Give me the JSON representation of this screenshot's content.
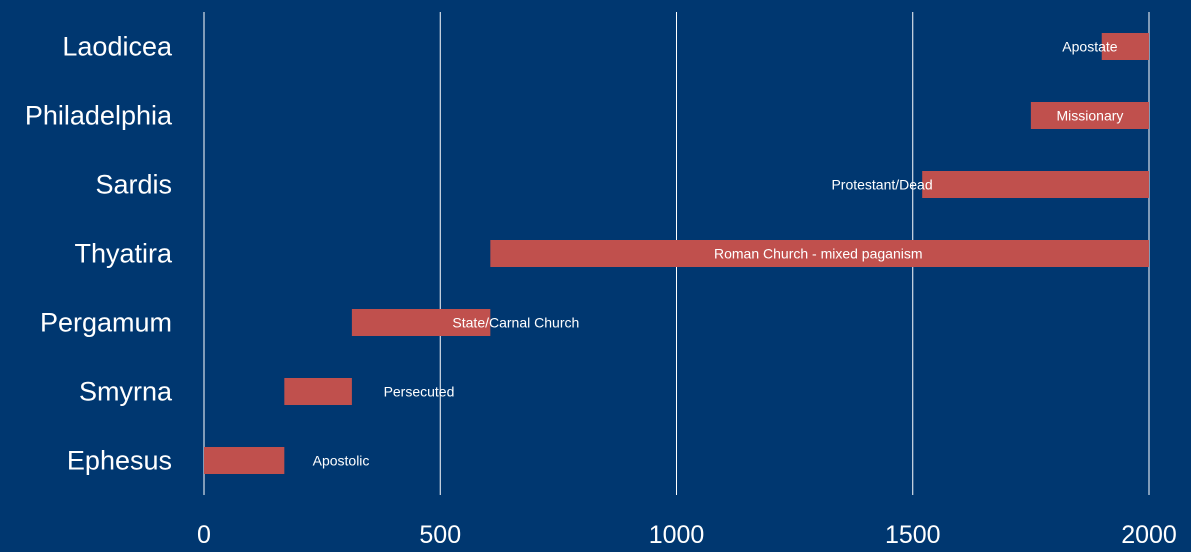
{
  "chart_data": {
    "type": "bar",
    "orientation": "horizontal",
    "stacked": true,
    "categories": [
      "Ephesus",
      "Smyrna",
      "Pergamum",
      "Thyatira",
      "Sardis",
      "Philadelphia",
      "Laodicea"
    ],
    "series": [
      {
        "values": [
          0,
          170,
          313,
          606,
          1520,
          1750,
          1900
        ]
      },
      {
        "values": [
          170,
          143,
          293,
          1394,
          480,
          250,
          100
        ],
        "color": "#c0504d"
      }
    ],
    "annotations": [
      {
        "category": "Ephesus",
        "text": "Apostolic",
        "x": 290
      },
      {
        "category": "Smyrna",
        "text": "Persecuted",
        "x": 455
      },
      {
        "category": "Pergamum",
        "text": "State/Carnal Church",
        "x": 660
      },
      {
        "category": "Thyatira",
        "text": "Roman Church  - mixed paganism",
        "x": 1300
      },
      {
        "category": "Sardis",
        "text": "Protestant/Dead",
        "x": 1435
      },
      {
        "category": "Philadelphia",
        "text": "Missionary",
        "x": 1875
      },
      {
        "category": "Laodicea",
        "text": "Apostate",
        "x": 1875
      }
    ],
    "title": "",
    "xlabel": "",
    "ylabel": "",
    "xlim": [
      0,
      2000
    ],
    "xticks": [
      "0",
      "500",
      "1000",
      "1500",
      "2000"
    ],
    "grid": "vertical",
    "legend": "none",
    "background_color": "#003770",
    "gridline_color": "#ffffff",
    "text_color": "#ffffff"
  }
}
